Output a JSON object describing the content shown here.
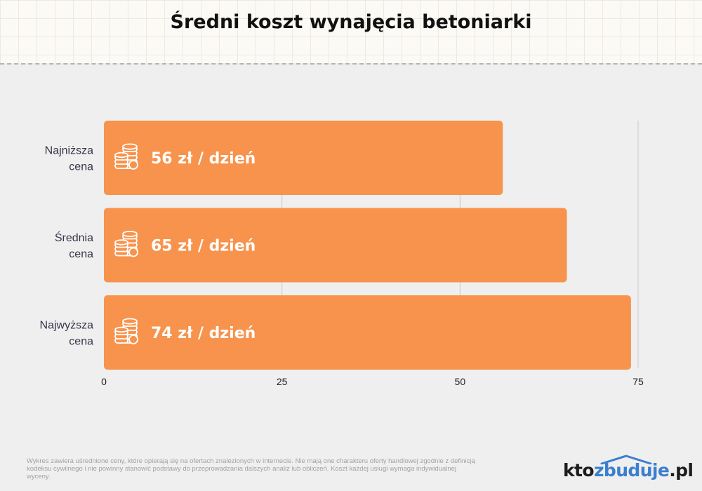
{
  "title": "Średni koszt wynajęcia betoniarki",
  "colors": {
    "bar": "#f7934c",
    "label_text": "#ffffff",
    "category_text": "#3a3348",
    "grid": "#c8c8c8",
    "logo_accent": "#3b7fd0"
  },
  "chart_data": {
    "type": "bar",
    "orientation": "horizontal",
    "categories": [
      [
        "Najniższa",
        "cena"
      ],
      [
        "Średnia",
        "cena"
      ],
      [
        "Najwyższa",
        "cena"
      ]
    ],
    "values": [
      56,
      65,
      74
    ],
    "data_labels": [
      "56 zł / dzień",
      "65 zł / dzień",
      "74 zł / dzień"
    ],
    "label_icon": "coins-icon",
    "xlim": [
      0,
      75
    ],
    "x_ticks": [
      0,
      25,
      50,
      75
    ],
    "grid": true,
    "legend": "none",
    "title": "Średni koszt wynajęcia betoniarki",
    "xlabel": "",
    "ylabel": ""
  },
  "footnote": "Wykres zawiera uśrednione ceny, które opierają się na ofertach znalezionych w internecie. Nie mają one charakteru oferty handlowej zgodnie z definicją kodeksu cywilnego i nie powinny stanowić podstawy do przeprowadzania dalszych analiz lub obliczeń. Koszt każdej usługi wymaga indywidualnej wyceny.",
  "logo": {
    "part1": "kto",
    "part2": "zbuduje",
    "part3": ".pl",
    "icon": "house-roof-icon"
  }
}
